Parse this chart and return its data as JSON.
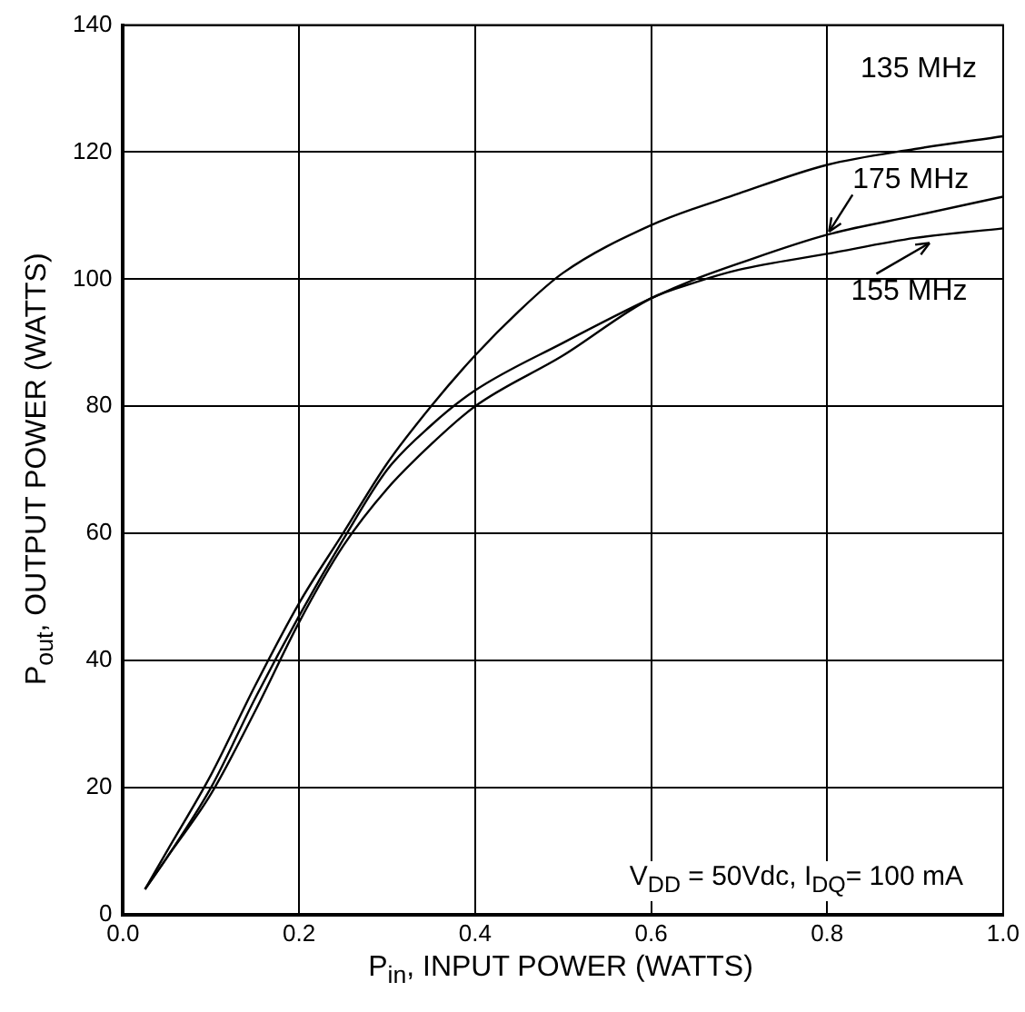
{
  "chart_data": {
    "type": "line",
    "xlabel": "P$_{in}$, INPUT POWER (WATTS)",
    "ylabel": "P$_{out}$, OUTPUT POWER (WATTS)",
    "xlim": [
      0,
      1
    ],
    "xticks": [
      {
        "value": 0,
        "label": "0.0"
      },
      0.2,
      0.4,
      0.6,
      0.8,
      {
        "value": 1,
        "label": "1.0"
      }
    ],
    "ylim": [
      0,
      140
    ],
    "yticks": [
      0,
      20,
      40,
      60,
      80,
      100,
      120,
      140
    ],
    "grid": true,
    "legend": false,
    "marker": "none",
    "line_style": "solid",
    "series": [
      {
        "color": "#000000",
        "x": [
          0.025,
          0.05,
          0.1,
          0.15,
          0.2,
          0.25,
          0.3,
          0.35,
          0.4,
          0.45,
          0.5,
          0.6,
          0.7,
          0.8,
          0.9,
          1.0
        ],
        "values": [
          4,
          10,
          22,
          36,
          49,
          60,
          71,
          80,
          88,
          95,
          101,
          108.5,
          113.5,
          118,
          120.5,
          122.5
        ]
      },
      {
        "color": "#000000",
        "x": [
          0.025,
          0.05,
          0.1,
          0.15,
          0.2,
          0.25,
          0.3,
          0.35,
          0.4,
          0.5,
          0.6,
          0.65,
          0.7,
          0.8,
          0.9,
          1.0
        ],
        "values": [
          4,
          9,
          20,
          34,
          47,
          59,
          70,
          77,
          82.5,
          90,
          97,
          100,
          102.5,
          107,
          110,
          113
        ]
      },
      {
        "color": "#000000",
        "x": [
          0.025,
          0.05,
          0.1,
          0.15,
          0.2,
          0.25,
          0.3,
          0.35,
          0.4,
          0.5,
          0.6,
          0.65,
          0.7,
          0.8,
          0.9,
          1.0
        ],
        "values": [
          4,
          9,
          19,
          32,
          46,
          58,
          67,
          74,
          80,
          88,
          97,
          99.5,
          101.5,
          104,
          106.5,
          108
        ]
      }
    ],
    "annotations": [
      {
        "text": "135 MHz",
        "x": 0.9,
        "y": 120.5
      },
      {
        "text": "175 MHz",
        "x": 0.8,
        "y": 107
      },
      {
        "text": "155 MHz",
        "x": 0.92,
        "y": 106
      },
      "V$_{DD}$ = 50Vdc, I$_{DQ}$=  100 mA"
    ]
  }
}
